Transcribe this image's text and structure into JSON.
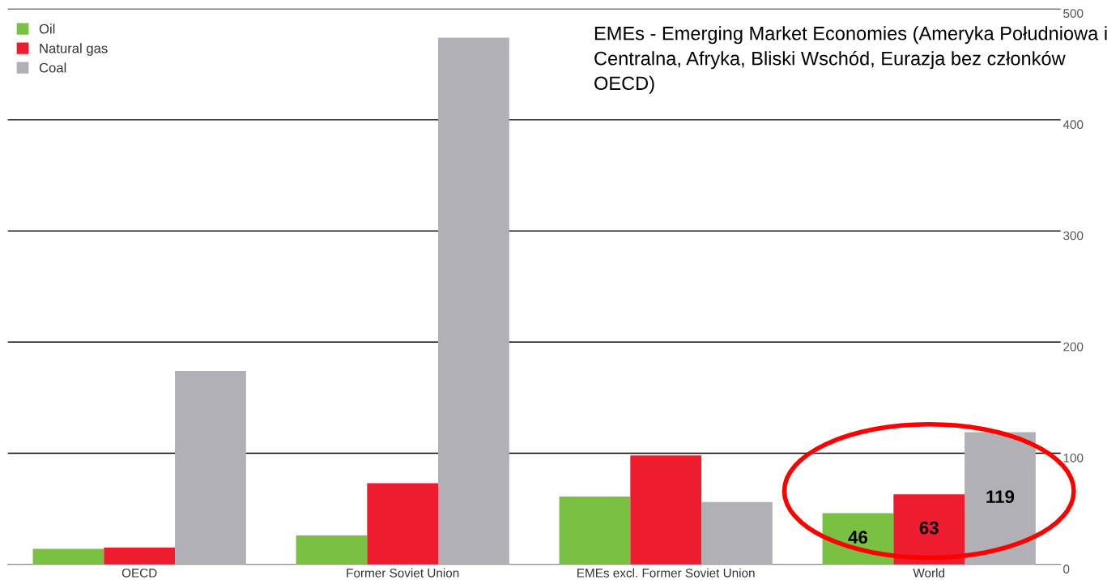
{
  "chart_data": {
    "type": "bar",
    "categories": [
      "OECD",
      "Former Soviet Union",
      "EMEs excl. Former Soviet Union",
      "World"
    ],
    "series": [
      {
        "name": "Oil",
        "color": "#7ac143",
        "values": [
          14,
          26,
          61,
          46
        ],
        "value_labels": [
          null,
          null,
          null,
          "46"
        ]
      },
      {
        "name": "Natural gas",
        "color": "#ed1c2e",
        "values": [
          15,
          73,
          98,
          63
        ],
        "value_labels": [
          null,
          null,
          null,
          "63"
        ]
      },
      {
        "name": "Coal",
        "color": "#b1b0b5",
        "values": [
          174,
          474,
          56,
          119
        ],
        "value_labels": [
          null,
          null,
          null,
          "119"
        ]
      }
    ],
    "ylim": [
      0,
      500
    ],
    "yticks": [
      0,
      100,
      200,
      300,
      400,
      500
    ],
    "grid": "y",
    "legend": "top left",
    "annotations": [
      {
        "text": "EMEs - Emerging Market Economies (Ameryka Południowa i Centralna, Afryka, Bliski Wschód, Eurazja bez członków OECD)"
      }
    ]
  }
}
